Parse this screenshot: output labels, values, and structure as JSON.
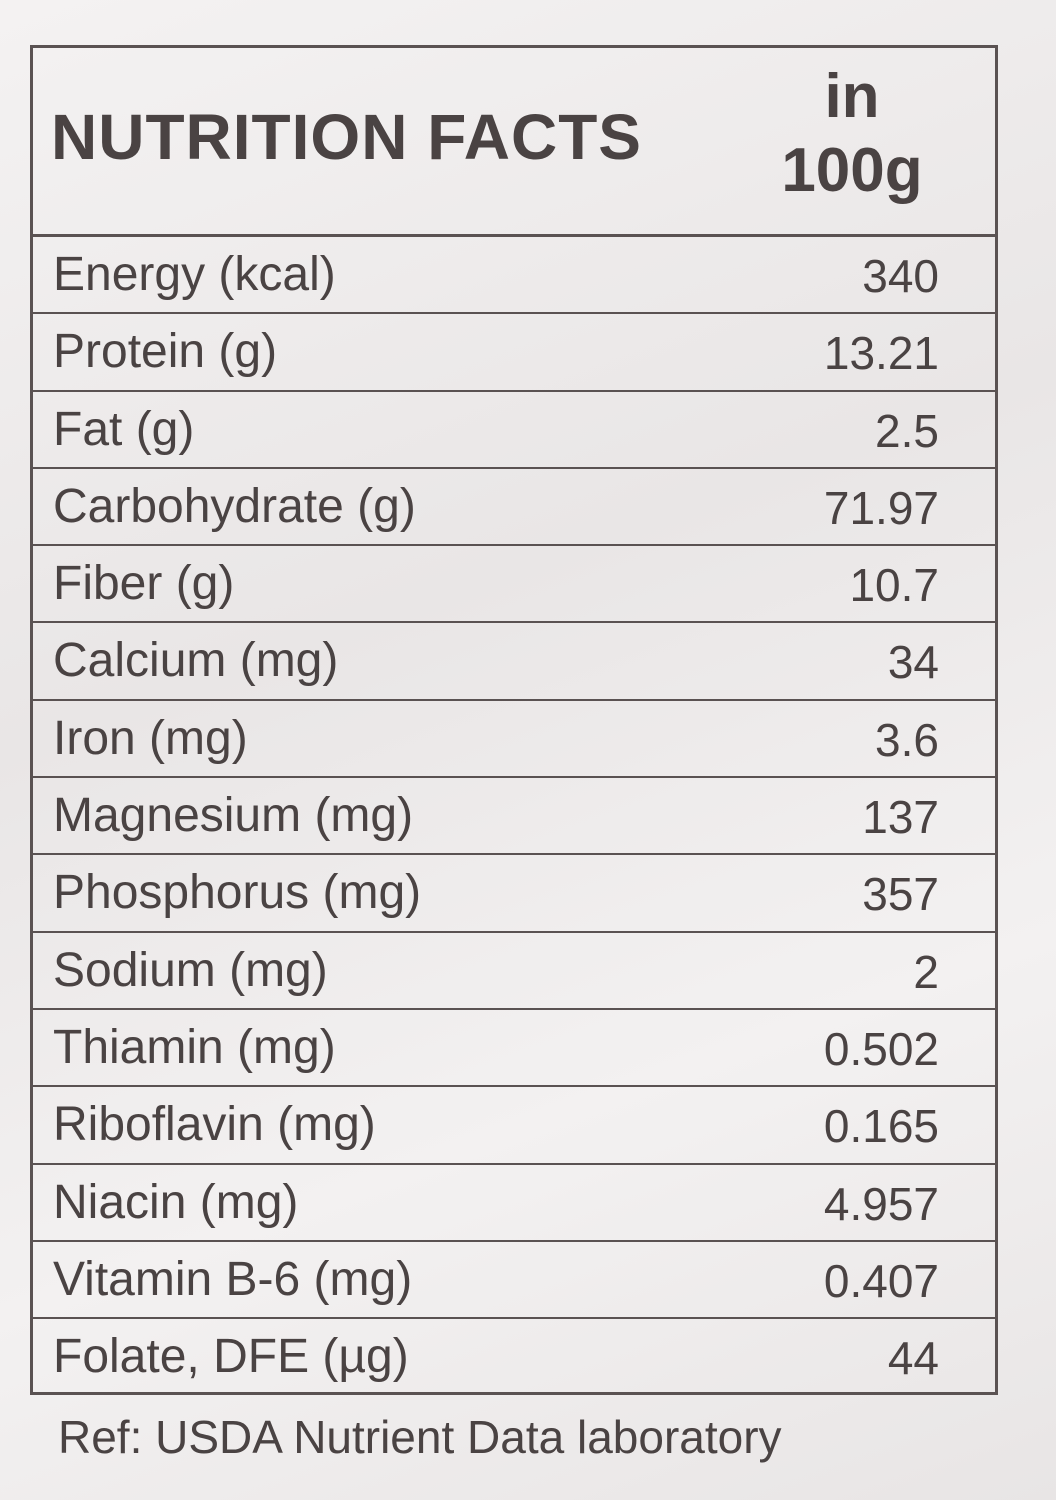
{
  "header": {
    "title": "NUTRITION FACTS",
    "per_line1": "in",
    "per_line2": "100g"
  },
  "table": {
    "rows": [
      [
        "Energy (kcal)",
        "340"
      ],
      [
        "Protein (g)",
        "13.21"
      ],
      [
        "Fat (g)",
        "2.5"
      ],
      [
        "Carbohydrate (g)",
        "71.97"
      ],
      [
        "Fiber (g)",
        "10.7"
      ],
      [
        "Calcium (mg)",
        "34"
      ],
      [
        "Iron (mg)",
        "3.6"
      ],
      [
        "Magnesium (mg)",
        "137"
      ],
      [
        "Phosphorus (mg)",
        "357"
      ],
      [
        "Sodium (mg)",
        "2"
      ],
      [
        "Thiamin (mg)",
        "0.502"
      ],
      [
        "Riboflavin (mg)",
        "0.165"
      ],
      [
        "Niacin (mg)",
        "4.957"
      ],
      [
        "Vitamin B-6 (mg)",
        "0.407"
      ],
      [
        "Folate, DFE (µg)",
        "44"
      ]
    ]
  },
  "footer": {
    "ref": "Ref: USDA Nutrient Data laboratory"
  }
}
